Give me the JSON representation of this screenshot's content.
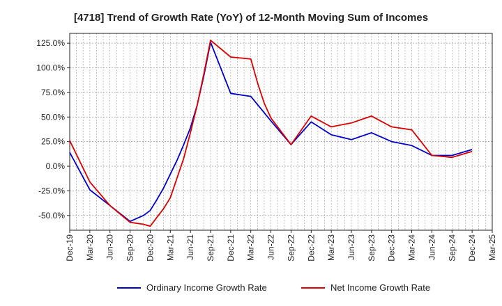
{
  "chart_data": {
    "type": "line",
    "title": "[4718]  Trend of Growth Rate (YoY) of 12-Month Moving Sum of Incomes",
    "xlabel": "",
    "ylabel": "",
    "grid": true,
    "legend_position": "bottom",
    "x_ticks": [
      "Dec-19",
      "Mar-20",
      "Jun-20",
      "Sep-20",
      "Dec-20",
      "Mar-21",
      "Jun-21",
      "Sep-21",
      "Dec-21",
      "Mar-22",
      "Jun-22",
      "Sep-22",
      "Dec-22",
      "Mar-23",
      "Jun-23",
      "Sep-23",
      "Dec-23",
      "Mar-24",
      "Jun-24",
      "Sep-24",
      "Dec-24",
      "Mar-25"
    ],
    "y_ticks": [
      125,
      100,
      75,
      50,
      25,
      0,
      -25,
      -50
    ],
    "y_tick_labels": [
      "125.0%",
      "100.0%",
      "75.0%",
      "50.0%",
      "25.0%",
      "0.0%",
      "-25.0%",
      "-50.0%"
    ],
    "ylim": [
      -65,
      135
    ],
    "series": [
      {
        "name": "Ordinary Income Growth Rate",
        "color": "#0000cc",
        "x": [
          "Dec-19",
          "Mar-20",
          "Jun-20",
          "Sep-20",
          "Nov-20",
          "Dec-20",
          "Jan-21",
          "Feb-21",
          "Mar-21",
          "Apr-21",
          "May-21",
          "Jun-21",
          "Jul-21",
          "Aug-21",
          "Sep-21",
          "Dec-21",
          "Mar-22",
          "Jun-22",
          "Sep-22",
          "Dec-22",
          "Mar-23",
          "Jun-23",
          "Sep-23",
          "Dec-23",
          "Mar-24",
          "Jun-24",
          "Sep-24",
          "Dec-24"
        ],
        "values": [
          14,
          -24,
          -40,
          -56,
          -50,
          -45,
          -34,
          -22,
          -8,
          6,
          22,
          39,
          62,
          92,
          126,
          74,
          71,
          46,
          22,
          45,
          32,
          27,
          34,
          25,
          21,
          11,
          11,
          17
        ]
      },
      {
        "name": "Net Income Growth Rate",
        "color": "#dd0000",
        "x": [
          "Dec-19",
          "Mar-20",
          "Jun-20",
          "Sep-20",
          "Nov-20",
          "Dec-20",
          "Jan-21",
          "Feb-21",
          "Mar-21",
          "Apr-21",
          "May-21",
          "Jun-21",
          "Jul-21",
          "Aug-21",
          "Sep-21",
          "Dec-21",
          "Mar-22",
          "Apr-22",
          "May-22",
          "Jun-22",
          "Sep-22",
          "Dec-22",
          "Mar-23",
          "Jun-23",
          "Sep-23",
          "Dec-23",
          "Mar-24",
          "Jun-24",
          "Sep-24",
          "Dec-24"
        ],
        "values": [
          26,
          -16,
          -40,
          -57,
          -59,
          -61,
          -52,
          -43,
          -32,
          -12,
          8,
          34,
          62,
          94,
          128,
          111,
          109,
          85,
          64,
          49,
          22,
          51,
          40,
          44,
          51,
          40,
          37,
          11,
          9,
          15
        ]
      }
    ]
  }
}
